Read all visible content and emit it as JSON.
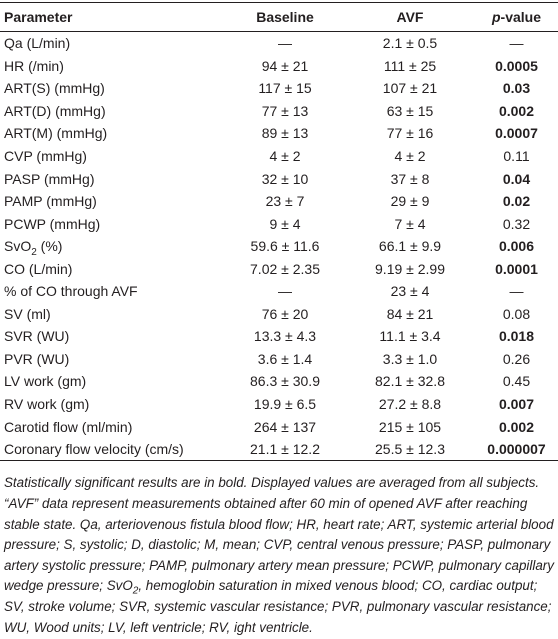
{
  "table": {
    "header": [
      "Parameter",
      "Baseline",
      "AVF",
      [
        "p",
        "-value"
      ]
    ],
    "rows": [
      [
        [
          "Qa (L/min)"
        ],
        "—",
        "2.1 ± 0.5",
        "—"
      ],
      [
        [
          "HR (/min)"
        ],
        "94 ± 21",
        "111 ± 25",
        "0.0005"
      ],
      [
        [
          "ART(S) (mmHg)"
        ],
        "117 ± 15",
        "107 ± 21",
        "0.03"
      ],
      [
        [
          "ART(D) (mmHg)"
        ],
        "77 ± 13",
        "63 ± 15",
        "0.002"
      ],
      [
        [
          "ART(M) (mmHg)"
        ],
        "89 ± 13",
        "77 ± 16",
        "0.0007"
      ],
      [
        [
          "CVP (mmHg)"
        ],
        "4 ± 2",
        "4 ± 2",
        "0.11"
      ],
      [
        [
          "PASP (mmHg)"
        ],
        "32 ± 10",
        "37 ± 8",
        "0.04"
      ],
      [
        [
          "PAMP (mmHg)"
        ],
        "23 ± 7",
        "29 ± 9",
        "0.02"
      ],
      [
        [
          "PCWP (mmHg)"
        ],
        "9 ± 4",
        "7 ± 4",
        "0.32"
      ],
      [
        [
          "SvO",
          "2",
          " (%)"
        ],
        "59.6 ± 11.6",
        "66.1 ± 9.9",
        "0.006"
      ],
      [
        [
          "CO (L/min)"
        ],
        "7.02 ± 2.35",
        "9.19 ± 2.99",
        "0.0001"
      ],
      [
        [
          "% of CO through AVF"
        ],
        "—",
        "23 ± 4",
        "—"
      ],
      [
        [
          "SV (ml)"
        ],
        "76 ± 20",
        "84 ± 21",
        "0.08"
      ],
      [
        [
          "SVR (WU)"
        ],
        "13.3 ± 4.3",
        "11.1 ± 3.4",
        "0.018"
      ],
      [
        [
          "PVR (WU)"
        ],
        "3.6 ± 1.4",
        "3.3 ± 1.0",
        "0.26"
      ],
      [
        [
          "LV work (gm)"
        ],
        "86.3 ± 30.9",
        "82.1 ± 32.8",
        "0.45"
      ],
      [
        [
          "RV work (gm)"
        ],
        "19.9 ± 6.5",
        "27.2 ± 8.8",
        "0.007"
      ],
      [
        [
          "Carotid flow (ml/min)"
        ],
        "264 ± 137",
        "215 ± 105",
        "0.002"
      ],
      [
        [
          "Coronary flow velocity (cm/s)"
        ],
        "21.1 ± 12.2",
        "25.5 ± 12.3",
        "0.000007"
      ]
    ],
    "bold_p": [
      false,
      true,
      true,
      true,
      true,
      false,
      true,
      true,
      false,
      true,
      true,
      false,
      false,
      true,
      false,
      false,
      true,
      true,
      true
    ]
  },
  "footnote": [
    "Statistically significant results are in bold. Displayed values are averaged from all subjects. “AVF” data represent measurements obtained after 60 min of opened AVF after reaching stable state. Qa, arteriovenous fistula blood flow; HR, heart rate; ART, systemic arterial blood pressure; S, systolic; D, diastolic; M, mean; CVP, central venous pressure; PASP, pulmonary artery systolic pressure; PAMP, pulmonary artery mean pressure; PCWP, pulmonary capillary wedge pressure; SvO",
    "2",
    ", hemoglobin saturation in mixed venous blood; CO, cardiac output; SV, stroke volume; SVR, systemic vascular resistance; PVR, pulmonary vascular resistance; WU, Wood units; LV, left ventricle; RV, ight ventricle."
  ]
}
